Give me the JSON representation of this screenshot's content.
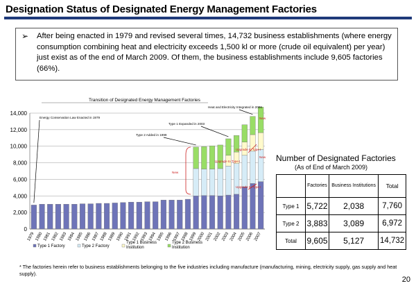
{
  "title": "Designation Status of Designated Energy Management Factories",
  "summary": {
    "bullet": "➢",
    "text": "After being enacted in 1979 and revised several times, 14,732 business establishments (where energy consumption combining heat and electricity exceeds 1,500 kl or more (crude oil equivalent) per year) just exist as of the end of March 2009. Of them, the business establishments include 9,605  factories (66%)."
  },
  "chart_data": {
    "type": "bar",
    "title": "Transition of Designated Energy Management Factories",
    "categories": [
      "1979",
      "1980",
      "1981",
      "1982",
      "1983",
      "1984",
      "1985",
      "1986",
      "1987",
      "1988",
      "1989",
      "1990",
      "1991",
      "1992",
      "1993",
      "1994",
      "1995",
      "1996",
      "1997",
      "1998",
      "1999",
      "2000",
      "2001",
      "2002",
      "2003",
      "2004",
      "2005",
      "2006",
      "2007"
    ],
    "ylim": [
      0,
      14000
    ],
    "yticks": [
      "0",
      "2,000",
      "4,000",
      "6,000",
      "8,000",
      "10,000",
      "12,000",
      "14,000"
    ],
    "series": [
      {
        "name": "Type 1 Factory",
        "color": "#6e74b8",
        "values": [
          2900,
          3000,
          3000,
          3000,
          3000,
          3000,
          3050,
          3050,
          3100,
          3100,
          3150,
          3200,
          3250,
          3250,
          3300,
          3300,
          3500,
          3500,
          3500,
          3600,
          4000,
          4050,
          4050,
          4000,
          4100,
          4200,
          5100,
          5500,
          5722
        ]
      },
      {
        "name": "Type 2 Factory",
        "color": "#d6ecf7",
        "values": [
          0,
          0,
          0,
          0,
          0,
          0,
          0,
          0,
          0,
          0,
          0,
          0,
          0,
          0,
          0,
          0,
          0,
          0,
          0,
          0,
          3300,
          3200,
          3200,
          3300,
          3500,
          3700,
          3800,
          3900,
          3883
        ]
      },
      {
        "name": "Type 1 Business Institution",
        "color": "#fffacc",
        "values": [
          0,
          0,
          0,
          0,
          0,
          0,
          0,
          0,
          0,
          0,
          0,
          0,
          0,
          0,
          0,
          0,
          0,
          0,
          0,
          0,
          0,
          0,
          0,
          0,
          1300,
          1400,
          1600,
          2000,
          2038
        ]
      },
      {
        "name": "Type 2 Business Institution",
        "color": "#99dd66",
        "values": [
          0,
          0,
          0,
          0,
          0,
          0,
          0,
          0,
          0,
          0,
          0,
          0,
          0,
          0,
          0,
          0,
          0,
          0,
          0,
          0,
          2600,
          2700,
          2800,
          2850,
          2000,
          2000,
          2100,
          2200,
          3089
        ]
      }
    ],
    "annotations": {
      "a1979": "Energy Conservation Law Enacted in 1979",
      "a1999": "Type 2 Added in 1999",
      "a2003": "Type 1 Expanded in 2003",
      "a2006": "Heat and Electricity Integrated in 2006",
      "upgrade": "Upgrade to Type I",
      "new": "New"
    }
  },
  "table": {
    "heading": "Number of Designated Factories",
    "subheading": "(As of End of March 2009)",
    "columns": [
      "",
      "Factories",
      "Business Institutions",
      "Total"
    ],
    "rows": [
      {
        "label": "Type 1",
        "factories": "5,722",
        "business": "2,038",
        "total": "7,760"
      },
      {
        "label": "Type 2",
        "factories": "3,883",
        "business": "3,089",
        "total": "6,972"
      },
      {
        "label": "Total",
        "factories": "9,605",
        "business": "5,127",
        "total": "14,732"
      }
    ]
  },
  "footnote": "* The factories herein refer to business establishments belonging to the five industries including  manufacture (manufacturing, mining, electricity supply, gas supply and  heat  supply).",
  "page_number": "20",
  "colors": {
    "title_bar": "#1f3a7a",
    "annotation_red": "#cc2222"
  }
}
